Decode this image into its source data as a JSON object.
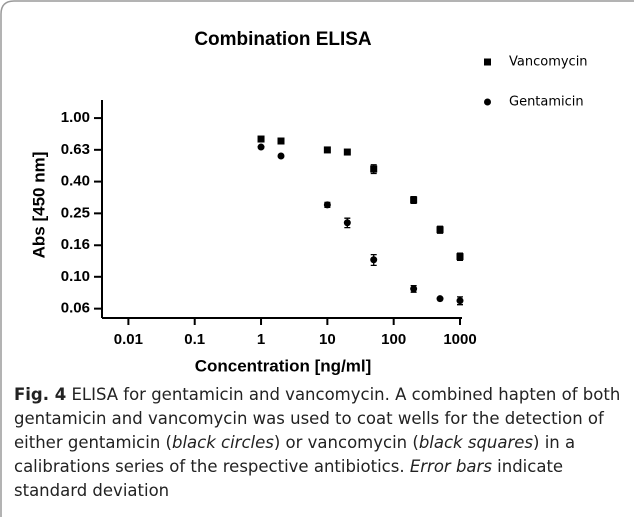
{
  "chart_data": {
    "type": "scatter",
    "title": "Combination ELISA",
    "xlabel": "Concentration [ng/ml]",
    "ylabel": "Abs [450 nm]",
    "xscale": "log",
    "yscale": "log",
    "xlim": [
      0.004,
      1000
    ],
    "xticks": [
      0.01,
      0.1,
      1,
      10,
      100,
      1000
    ],
    "ylim": [
      0.055,
      1.3
    ],
    "yticks": [
      {
        "value": 0.063,
        "label": "0.06"
      },
      {
        "value": 0.1,
        "label": "0.10"
      },
      {
        "value": 0.158,
        "label": "0.16"
      },
      {
        "value": 0.251,
        "label": "0.25"
      },
      {
        "value": 0.398,
        "label": "0.40"
      },
      {
        "value": 0.631,
        "label": "0.63"
      },
      {
        "value": 1,
        "label": "1.00"
      }
    ],
    "series": [
      {
        "name": "Vancomycin",
        "marker": "square",
        "color": "#000000",
        "x": [
          1,
          2,
          10,
          20,
          50,
          200,
          500,
          1000
        ],
        "values": [
          0.738,
          0.717,
          0.63,
          0.611,
          0.478,
          0.305,
          0.198,
          0.134
        ],
        "errors": [
          null,
          null,
          null,
          null,
          0.03,
          0.015,
          0.01,
          0.007
        ]
      },
      {
        "name": "Gentamicin",
        "marker": "circle",
        "color": "#000000",
        "x": [
          1,
          2,
          10,
          20,
          50,
          200,
          500,
          1000
        ],
        "values": [
          0.657,
          0.577,
          0.284,
          0.219,
          0.128,
          0.084,
          0.0728,
          0.0707
        ],
        "errors": [
          null,
          null,
          0.01,
          0.015,
          0.01,
          0.004,
          null,
          0.004
        ]
      }
    ]
  },
  "caption": {
    "label": "Fig. 4",
    "runs": [
      {
        "text": " ELISA for gentamicin and vancomycin. A combined hapten of both gentamicin and vancomycin was used to coat wells for the detection of either gentamicin (",
        "italic": false
      },
      {
        "text": "black circles",
        "italic": true
      },
      {
        "text": ") or vancomycin (",
        "italic": false
      },
      {
        "text": "black squares",
        "italic": true
      },
      {
        "text": ") in a calibrations series of the respective antibiotics. ",
        "italic": false
      },
      {
        "text": "Error bars",
        "italic": true
      },
      {
        "text": " indicate standard deviation",
        "italic": false
      }
    ]
  }
}
